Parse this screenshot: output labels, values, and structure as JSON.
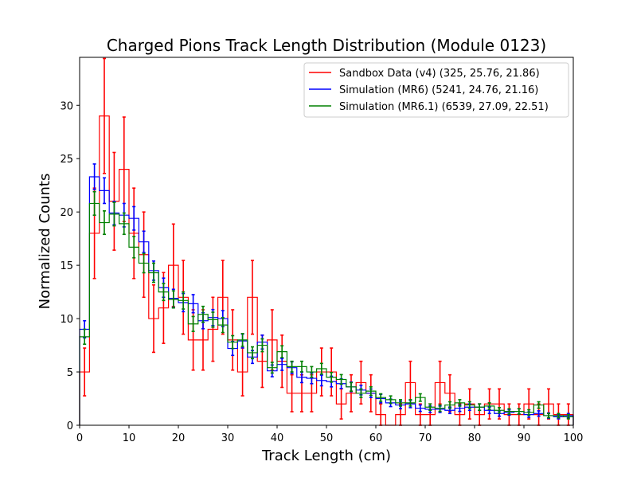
{
  "chart_data": {
    "type": "step",
    "title": "Charged Pions Track Length Distribution (Module 0123)",
    "xlabel": "Track Length (cm)",
    "ylabel": "Normalized Counts",
    "xlim": [
      0,
      100
    ],
    "ylim": [
      0,
      34.5
    ],
    "xticks": [
      0,
      10,
      20,
      30,
      40,
      50,
      60,
      70,
      80,
      90,
      100
    ],
    "yticks": [
      0,
      5,
      10,
      15,
      20,
      25,
      30
    ],
    "bin_edges": [
      0,
      2,
      4,
      6,
      8,
      10,
      12,
      14,
      16,
      18,
      20,
      22,
      24,
      26,
      28,
      30,
      32,
      34,
      36,
      38,
      40,
      42,
      44,
      46,
      48,
      50,
      52,
      54,
      56,
      58,
      60,
      62,
      64,
      66,
      68,
      70,
      72,
      74,
      76,
      78,
      80,
      82,
      84,
      86,
      88,
      90,
      92,
      94,
      96,
      98,
      100
    ],
    "legend_position": "top-right",
    "grid": false,
    "series": [
      {
        "name": "Sandbox Data (v4) (325, 25.76, 21.86)",
        "color": "#ff0000",
        "values": [
          5,
          18,
          29,
          21,
          24,
          18,
          16,
          10,
          11,
          15,
          12,
          8,
          8,
          9,
          12,
          8,
          5,
          12,
          6,
          8,
          6,
          3,
          3,
          3,
          5,
          5,
          2,
          3,
          4,
          3,
          1,
          0,
          1,
          4,
          1,
          1,
          4,
          3,
          1,
          2,
          1,
          2,
          2,
          1,
          1,
          2,
          1,
          2,
          1,
          1
        ],
        "errors": [
          2.24,
          4.24,
          5.39,
          4.58,
          4.9,
          4.24,
          4.0,
          3.16,
          3.32,
          3.87,
          3.46,
          2.83,
          2.83,
          3.0,
          3.46,
          2.83,
          2.24,
          3.46,
          2.45,
          2.83,
          2.45,
          1.73,
          1.73,
          1.73,
          2.24,
          2.24,
          1.41,
          1.73,
          2.0,
          1.73,
          1.0,
          0,
          1.0,
          2.0,
          1.0,
          1.0,
          2.0,
          1.73,
          1.0,
          1.41,
          1.0,
          1.41,
          1.41,
          1.0,
          1.0,
          1.41,
          1.0,
          1.41,
          1.0,
          1.0
        ]
      },
      {
        "name": "Simulation (MR6) (5241, 24.76, 21.16)",
        "color": "#0000ff",
        "values": [
          9.0,
          23.3,
          22.0,
          19.9,
          19.7,
          19.4,
          17.2,
          14.5,
          12.9,
          11.9,
          11.5,
          11.4,
          9.8,
          10.1,
          10.0,
          7.2,
          7.9,
          6.4,
          7.8,
          5.1,
          5.7,
          5.4,
          4.5,
          4.4,
          4.2,
          4.1,
          3.9,
          3.6,
          3.3,
          3.0,
          2.5,
          2.1,
          1.9,
          2.0,
          1.6,
          1.5,
          1.5,
          1.4,
          1.6,
          1.7,
          1.7,
          1.4,
          1.1,
          1.2,
          1.3,
          1.0,
          1.1,
          0.9,
          0.8,
          0.9
        ],
        "errors": [
          0.8,
          1.2,
          1.2,
          1.1,
          1.1,
          1.1,
          1.0,
          0.9,
          0.9,
          0.85,
          0.85,
          0.85,
          0.75,
          0.75,
          0.75,
          0.65,
          0.65,
          0.6,
          0.65,
          0.55,
          0.55,
          0.55,
          0.5,
          0.5,
          0.5,
          0.5,
          0.45,
          0.45,
          0.45,
          0.4,
          0.4,
          0.35,
          0.35,
          0.35,
          0.3,
          0.3,
          0.3,
          0.3,
          0.3,
          0.3,
          0.3,
          0.3,
          0.25,
          0.25,
          0.25,
          0.25,
          0.25,
          0.25,
          0.2,
          0.2
        ]
      },
      {
        "name": "Simulation (MR6.1) (6539, 27.09, 22.51)",
        "color": "#008000",
        "values": [
          8.3,
          20.8,
          19.0,
          19.8,
          18.9,
          16.7,
          15.2,
          14.3,
          12.5,
          11.8,
          11.7,
          9.5,
          10.4,
          9.9,
          9.4,
          7.8,
          8.0,
          6.8,
          7.5,
          5.4,
          6.9,
          5.5,
          5.5,
          5.0,
          5.3,
          4.5,
          4.3,
          3.6,
          3.0,
          3.2,
          2.6,
          2.4,
          2.1,
          2.1,
          2.6,
          1.7,
          1.6,
          1.9,
          2.1,
          1.9,
          1.7,
          1.8,
          1.4,
          1.3,
          1.3,
          1.2,
          1.9,
          0.9,
          0.9,
          0.8
        ],
        "errors": [
          0.7,
          1.1,
          1.1,
          1.1,
          1.0,
          1.0,
          0.9,
          0.9,
          0.8,
          0.8,
          0.8,
          0.7,
          0.75,
          0.7,
          0.7,
          0.6,
          0.6,
          0.55,
          0.6,
          0.5,
          0.55,
          0.5,
          0.5,
          0.5,
          0.5,
          0.45,
          0.45,
          0.4,
          0.4,
          0.4,
          0.35,
          0.35,
          0.3,
          0.3,
          0.35,
          0.3,
          0.3,
          0.3,
          0.3,
          0.3,
          0.3,
          0.3,
          0.25,
          0.25,
          0.25,
          0.25,
          0.3,
          0.2,
          0.2,
          0.2
        ]
      }
    ]
  }
}
